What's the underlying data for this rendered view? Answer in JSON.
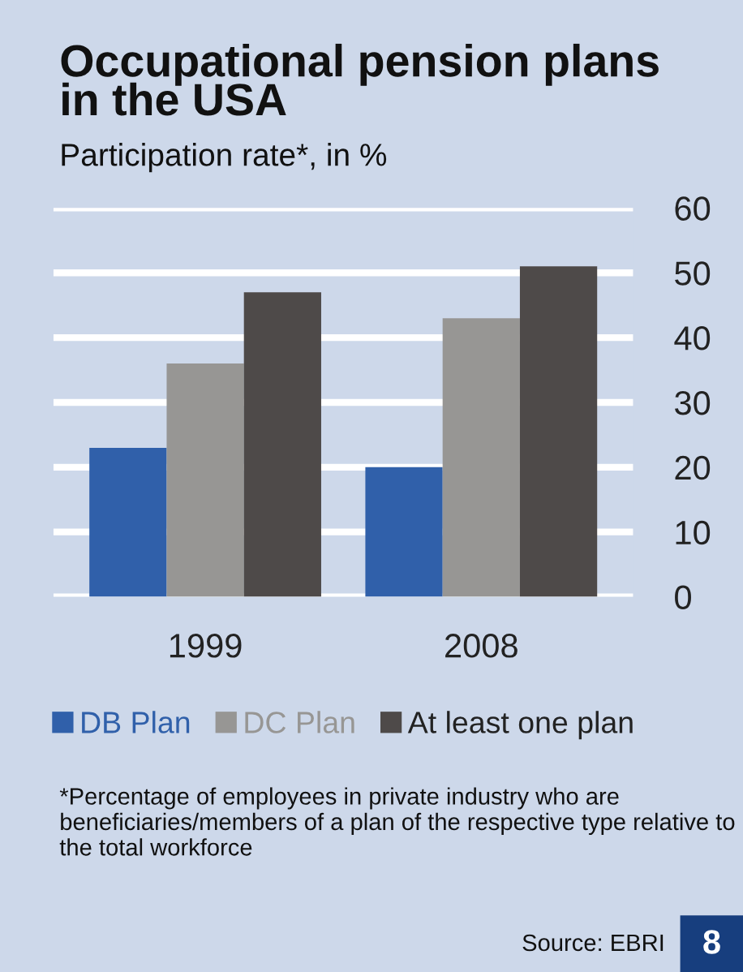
{
  "chart_data": {
    "type": "bar",
    "title": "Occupational pension plans\nin the USA",
    "subtitle": "Participation rate*, in %",
    "categories": [
      "1999",
      "2008"
    ],
    "series": [
      {
        "name": "DB Plan",
        "color": "#3060aa",
        "values": [
          23,
          20
        ]
      },
      {
        "name": "DC Plan",
        "color": "#979694",
        "values": [
          36,
          43
        ]
      },
      {
        "name": "At least one plan",
        "color": "#4e4a49",
        "values": [
          47,
          51
        ]
      }
    ],
    "ylim": [
      0,
      60
    ],
    "yticks": [
      0,
      10,
      20,
      30,
      40,
      50,
      60
    ],
    "grid": "y",
    "legend": "bottom",
    "annotations": [
      "*Percentage of employees in private industry who are beneficiaries/members of a plan of the respective type relative to the total workforce",
      "Source: EBRI",
      "8"
    ]
  }
}
